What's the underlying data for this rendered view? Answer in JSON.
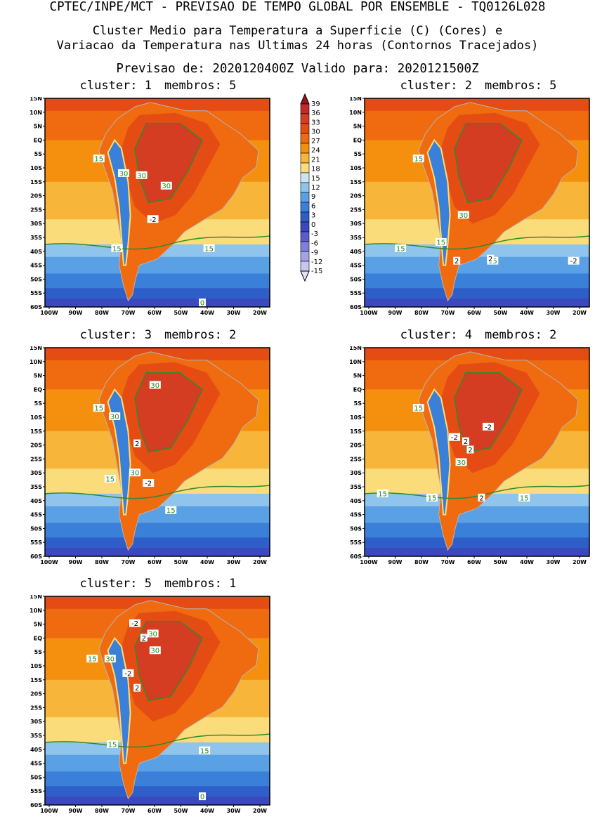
{
  "header": {
    "line1": "CPTEC/INPE/MCT - PREVISAO DE TEMPO GLOBAL POR ENSEMBLE - TQ0126L028",
    "line2": "Cluster Medio para Temperatura a Superficie (C) (Cores) e",
    "line3": "Variacao da Temperatura nas Ultimas 24 horas (Contornos Tracejados)",
    "line4": "Previsao de: 2020120400Z   Valido para: 2020121500Z"
  },
  "lat_labels": [
    "15N",
    "10N",
    "5N",
    "EQ",
    "5S",
    "10S",
    "15S",
    "20S",
    "25S",
    "30S",
    "35S",
    "40S",
    "45S",
    "50S",
    "55S",
    "60S"
  ],
  "lon_labels": [
    "100W",
    "90W",
    "80W",
    "70W",
    "60W",
    "50W",
    "40W",
    "30W",
    "20W"
  ],
  "colorbar": {
    "labels": [
      "39",
      "36",
      "33",
      "30",
      "27",
      "24",
      "21",
      "18",
      "15",
      "12",
      "9",
      "6",
      "3",
      "0",
      "-3",
      "-6",
      "-9",
      "-12",
      "-15"
    ],
    "colors": [
      "#96141e",
      "#bf2a2a",
      "#d43d22",
      "#e44c14",
      "#f06a10",
      "#f5900f",
      "#f7b53a",
      "#fbdc7a",
      "#cfe4f2",
      "#8fc4ec",
      "#5aa0e4",
      "#3a7fd8",
      "#2e5ec8",
      "#3c48be",
      "#5b5bcf",
      "#7f7fdc",
      "#a3a3e6",
      "#c6c6f0",
      "#e2e2f7"
    ]
  },
  "panels": [
    {
      "cluster_label": "cluster: 1",
      "members_label": "membros: 5",
      "labels_green": [
        "15",
        "30",
        "30",
        "30",
        "15",
        "15",
        "0"
      ],
      "labels_white": [
        "-2"
      ]
    },
    {
      "cluster_label": "cluster: 2",
      "members_label": "membros: 5",
      "labels_green": [
        "15",
        "30",
        "15",
        "15",
        "15"
      ],
      "labels_white": [
        "2",
        "2",
        "-2"
      ]
    },
    {
      "cluster_label": "cluster: 3",
      "members_label": "membros: 2",
      "labels_green": [
        "30",
        "15",
        "30",
        "30",
        "15",
        "15"
      ],
      "labels_white": [
        "2",
        "-2"
      ]
    },
    {
      "cluster_label": "cluster: 4",
      "members_label": "membros: 2",
      "labels_green": [
        "15",
        "30",
        "15",
        "15",
        "15"
      ],
      "labels_white": [
        "-2",
        "-2",
        "2",
        "2",
        "2"
      ]
    },
    {
      "cluster_label": "cluster: 5",
      "members_label": "membros: 1",
      "labels_green": [
        "30",
        "30",
        "15",
        "30",
        "15",
        "15",
        "0"
      ],
      "labels_white": [
        "-2",
        "2",
        "-2",
        "2"
      ]
    }
  ]
}
